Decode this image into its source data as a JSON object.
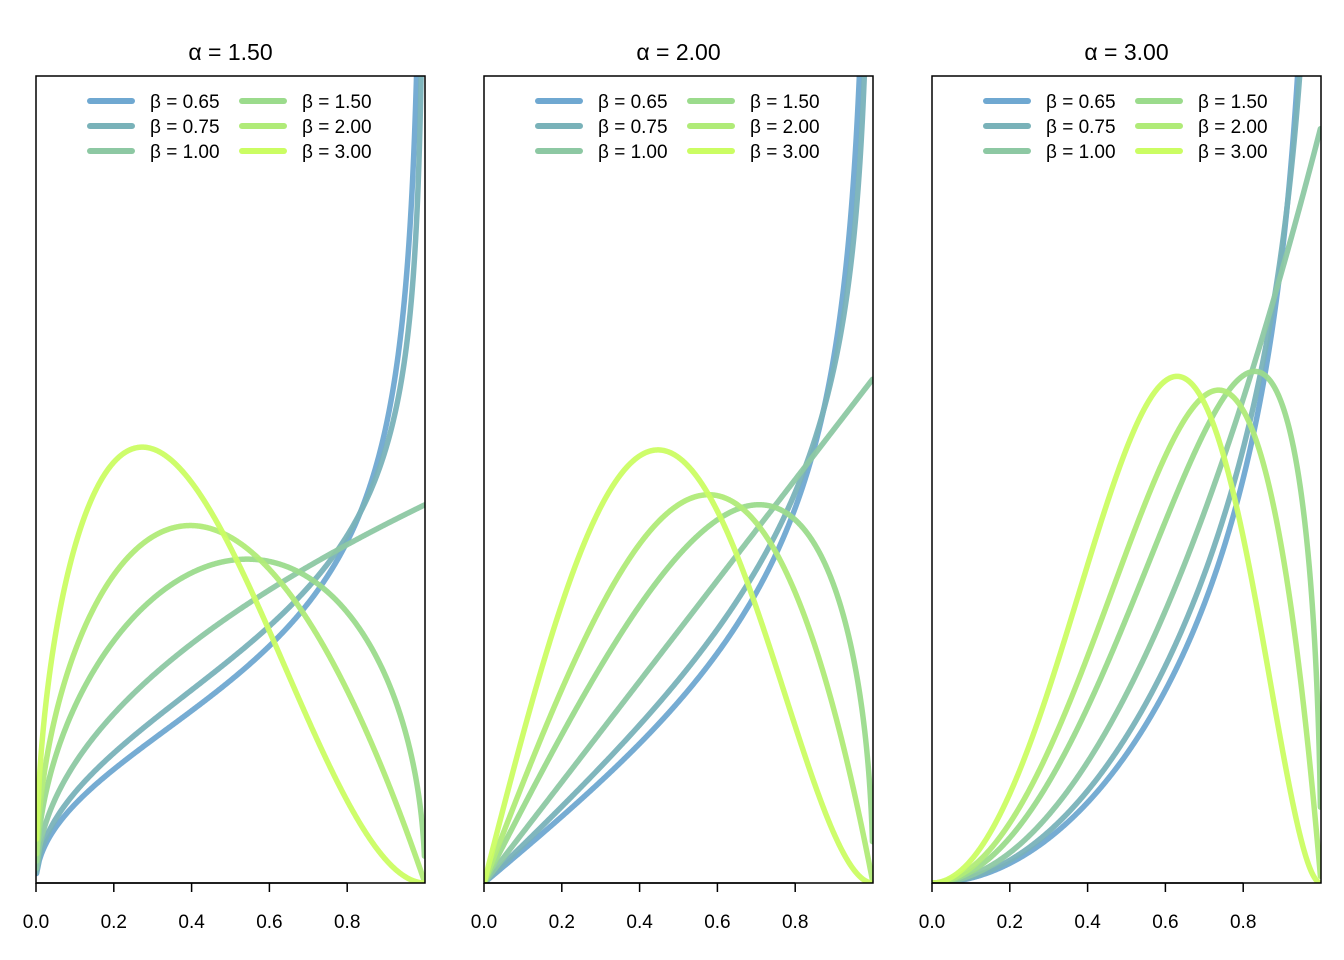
{
  "chart_data": [
    {
      "type": "line",
      "title": "α = 1.50",
      "alpha": 1.5,
      "xlim": [
        0,
        1
      ],
      "x_ticks": [
        "0.0",
        "0.2",
        "0.4",
        "0.6",
        "0.8"
      ],
      "legend_position": "top",
      "series": [
        {
          "name": "β = 0.65",
          "beta": 0.65,
          "color": "#6fa8d1"
        },
        {
          "name": "β = 0.75",
          "beta": 0.75,
          "color": "#79b2b9"
        },
        {
          "name": "β = 1.00",
          "beta": 1.0,
          "color": "#8dc8a3"
        },
        {
          "name": "β = 1.50",
          "beta": 1.5,
          "color": "#9bdb8c"
        },
        {
          "name": "β = 2.00",
          "beta": 2.0,
          "color": "#b0eb78"
        },
        {
          "name": "β = 3.00",
          "beta": 3.0,
          "color": "#cbfd63"
        }
      ]
    },
    {
      "type": "line",
      "title": "α = 2.00",
      "alpha": 2.0,
      "xlim": [
        0,
        1
      ],
      "x_ticks": [
        "0.0",
        "0.2",
        "0.4",
        "0.6",
        "0.8"
      ],
      "legend_position": "top",
      "series": [
        {
          "name": "β = 0.65",
          "beta": 0.65,
          "color": "#6fa8d1"
        },
        {
          "name": "β = 0.75",
          "beta": 0.75,
          "color": "#79b2b9"
        },
        {
          "name": "β = 1.00",
          "beta": 1.0,
          "color": "#8dc8a3"
        },
        {
          "name": "β = 1.50",
          "beta": 1.5,
          "color": "#9bdb8c"
        },
        {
          "name": "β = 2.00",
          "beta": 2.0,
          "color": "#b0eb78"
        },
        {
          "name": "β = 3.00",
          "beta": 3.0,
          "color": "#cbfd63"
        }
      ]
    },
    {
      "type": "line",
      "title": "α = 3.00",
      "alpha": 3.0,
      "xlim": [
        0,
        1
      ],
      "x_ticks": [
        "0.0",
        "0.2",
        "0.4",
        "0.6",
        "0.8"
      ],
      "legend_position": "top",
      "series": [
        {
          "name": "β = 0.65",
          "beta": 0.65,
          "color": "#6fa8d1"
        },
        {
          "name": "β = 0.75",
          "beta": 0.75,
          "color": "#79b2b9"
        },
        {
          "name": "β = 1.00",
          "beta": 1.0,
          "color": "#8dc8a3"
        },
        {
          "name": "β = 1.50",
          "beta": 1.5,
          "color": "#9bdb8c"
        },
        {
          "name": "β = 2.00",
          "beta": 2.0,
          "color": "#b0eb78"
        },
        {
          "name": "β = 3.00",
          "beta": 3.0,
          "color": "#cbfd63"
        }
      ]
    }
  ]
}
